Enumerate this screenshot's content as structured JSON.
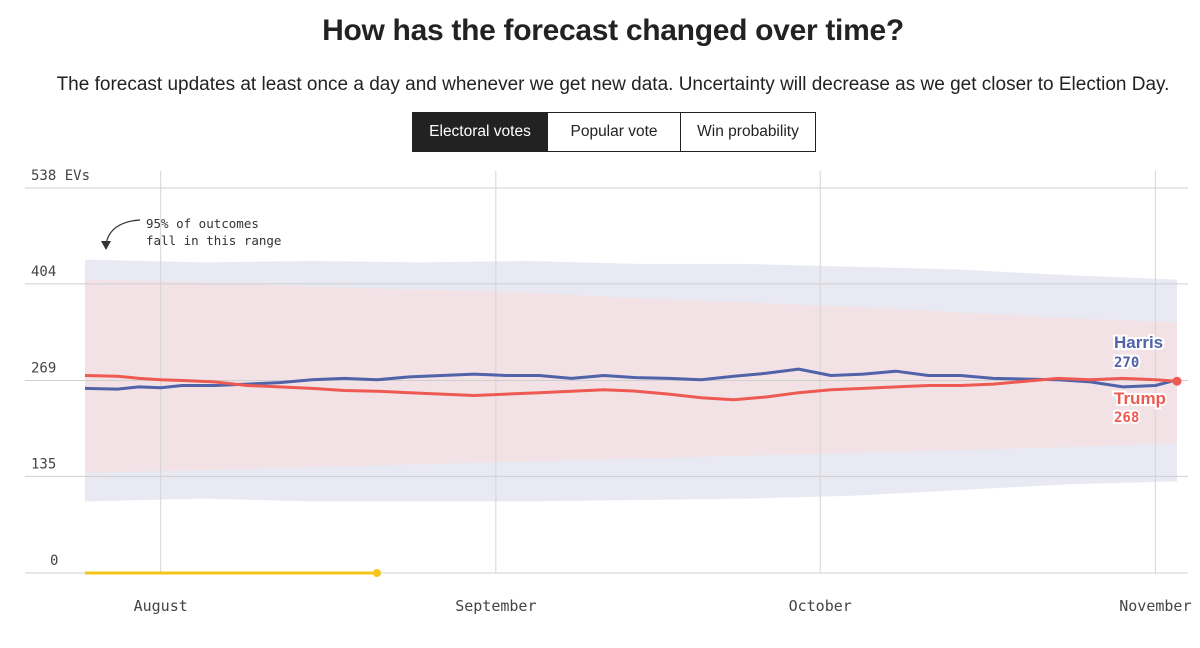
{
  "header": {
    "title": "How has the forecast changed over time?",
    "subtitle": "The forecast updates at least once a day and whenever we get new data. Uncertainty will decrease as we get closer to Election Day."
  },
  "tabs": [
    {
      "label": "Electoral votes",
      "active": true
    },
    {
      "label": "Popular vote",
      "active": false
    },
    {
      "label": "Win probability",
      "active": false
    }
  ],
  "colors": {
    "harris": "#5062a8",
    "trump": "#ee5a52",
    "harris_band": "#e8e9f3",
    "trump_band": "#fbe5e3",
    "overlap_band": "#f1e1e5",
    "marker": "#f5c518"
  },
  "chart_data": {
    "type": "line",
    "title": "",
    "xlabel": "",
    "ylabel": "",
    "ylim": [
      0,
      538
    ],
    "y_ticks": [
      {
        "value": 538,
        "label": "538 EVs"
      },
      {
        "value": 404,
        "label": "404"
      },
      {
        "value": 269,
        "label": "269"
      },
      {
        "value": 135,
        "label": "135"
      },
      {
        "value": 0,
        "label": "0"
      }
    ],
    "x_ticks": [
      {
        "date": "2024-08-01",
        "label": "August"
      },
      {
        "date": "2024-09-01",
        "label": "September"
      },
      {
        "date": "2024-10-01",
        "label": "October"
      },
      {
        "date": "2024-11-01",
        "label": "November"
      }
    ],
    "x_range": [
      "2024-07-25",
      "2024-11-03"
    ],
    "annotation": {
      "line1": "95% of outcomes",
      "line2": "fall in this range"
    },
    "series": [
      {
        "name": "Harris",
        "end_label": "270",
        "points": [
          [
            "2024-07-25",
            258
          ],
          [
            "2024-07-28",
            257
          ],
          [
            "2024-07-30",
            260
          ],
          [
            "2024-08-01",
            259
          ],
          [
            "2024-08-03",
            262
          ],
          [
            "2024-08-06",
            262
          ],
          [
            "2024-08-09",
            264
          ],
          [
            "2024-08-12",
            266
          ],
          [
            "2024-08-15",
            270
          ],
          [
            "2024-08-18",
            272
          ],
          [
            "2024-08-21",
            270
          ],
          [
            "2024-08-24",
            274
          ],
          [
            "2024-08-27",
            276
          ],
          [
            "2024-08-30",
            278
          ],
          [
            "2024-09-02",
            276
          ],
          [
            "2024-09-05",
            276
          ],
          [
            "2024-09-08",
            272
          ],
          [
            "2024-09-11",
            276
          ],
          [
            "2024-09-14",
            273
          ],
          [
            "2024-09-17",
            272
          ],
          [
            "2024-09-20",
            270
          ],
          [
            "2024-09-23",
            275
          ],
          [
            "2024-09-26",
            279
          ],
          [
            "2024-09-29",
            285
          ],
          [
            "2024-10-02",
            276
          ],
          [
            "2024-10-05",
            278
          ],
          [
            "2024-10-08",
            282
          ],
          [
            "2024-10-11",
            276
          ],
          [
            "2024-10-14",
            276
          ],
          [
            "2024-10-17",
            272
          ],
          [
            "2024-10-20",
            271
          ],
          [
            "2024-10-23",
            270
          ],
          [
            "2024-10-26",
            267
          ],
          [
            "2024-10-29",
            260
          ],
          [
            "2024-11-01",
            262
          ],
          [
            "2024-11-03",
            270
          ]
        ],
        "upper": [
          [
            "2024-07-25",
            438
          ],
          [
            "2024-08-05",
            434
          ],
          [
            "2024-08-15",
            436
          ],
          [
            "2024-08-25",
            434
          ],
          [
            "2024-09-04",
            436
          ],
          [
            "2024-09-14",
            432
          ],
          [
            "2024-09-24",
            432
          ],
          [
            "2024-10-04",
            428
          ],
          [
            "2024-10-14",
            424
          ],
          [
            "2024-10-24",
            416
          ],
          [
            "2024-11-03",
            410
          ]
        ],
        "lower": [
          [
            "2024-07-25",
            100
          ],
          [
            "2024-08-05",
            104
          ],
          [
            "2024-08-15",
            100
          ],
          [
            "2024-08-25",
            100
          ],
          [
            "2024-09-04",
            100
          ],
          [
            "2024-09-14",
            102
          ],
          [
            "2024-09-24",
            104
          ],
          [
            "2024-10-04",
            108
          ],
          [
            "2024-10-14",
            116
          ],
          [
            "2024-10-24",
            124
          ],
          [
            "2024-11-03",
            128
          ]
        ]
      },
      {
        "name": "Trump",
        "end_label": "268",
        "points": [
          [
            "2024-07-25",
            276
          ],
          [
            "2024-07-28",
            275
          ],
          [
            "2024-07-30",
            272
          ],
          [
            "2024-08-01",
            270
          ],
          [
            "2024-08-03",
            269
          ],
          [
            "2024-08-06",
            267
          ],
          [
            "2024-08-09",
            262
          ],
          [
            "2024-08-12",
            260
          ],
          [
            "2024-08-15",
            258
          ],
          [
            "2024-08-18",
            255
          ],
          [
            "2024-08-21",
            254
          ],
          [
            "2024-08-24",
            252
          ],
          [
            "2024-08-27",
            250
          ],
          [
            "2024-08-30",
            248
          ],
          [
            "2024-09-02",
            250
          ],
          [
            "2024-09-05",
            252
          ],
          [
            "2024-09-08",
            254
          ],
          [
            "2024-09-11",
            256
          ],
          [
            "2024-09-14",
            254
          ],
          [
            "2024-09-17",
            250
          ],
          [
            "2024-09-20",
            245
          ],
          [
            "2024-09-23",
            242
          ],
          [
            "2024-09-26",
            246
          ],
          [
            "2024-09-29",
            252
          ],
          [
            "2024-10-02",
            256
          ],
          [
            "2024-10-05",
            258
          ],
          [
            "2024-10-08",
            260
          ],
          [
            "2024-10-11",
            262
          ],
          [
            "2024-10-14",
            262
          ],
          [
            "2024-10-17",
            264
          ],
          [
            "2024-10-20",
            268
          ],
          [
            "2024-10-23",
            272
          ],
          [
            "2024-10-26",
            270
          ],
          [
            "2024-10-29",
            272
          ],
          [
            "2024-11-01",
            270
          ],
          [
            "2024-11-03",
            268
          ]
        ],
        "upper": [
          [
            "2024-07-25",
            410
          ],
          [
            "2024-08-05",
            406
          ],
          [
            "2024-08-15",
            400
          ],
          [
            "2024-08-25",
            396
          ],
          [
            "2024-09-04",
            392
          ],
          [
            "2024-09-14",
            384
          ],
          [
            "2024-09-24",
            378
          ],
          [
            "2024-10-04",
            372
          ],
          [
            "2024-10-14",
            364
          ],
          [
            "2024-10-24",
            356
          ],
          [
            "2024-11-03",
            350
          ]
        ],
        "lower": [
          [
            "2024-07-25",
            140
          ],
          [
            "2024-08-05",
            144
          ],
          [
            "2024-08-15",
            148
          ],
          [
            "2024-08-25",
            152
          ],
          [
            "2024-09-04",
            156
          ],
          [
            "2024-09-14",
            160
          ],
          [
            "2024-09-24",
            164
          ],
          [
            "2024-10-04",
            168
          ],
          [
            "2024-10-14",
            172
          ],
          [
            "2024-10-24",
            176
          ],
          [
            "2024-11-03",
            182
          ]
        ]
      }
    ],
    "highlight_segment": {
      "start": "2024-07-25",
      "end": "2024-08-21",
      "value": 0
    }
  }
}
